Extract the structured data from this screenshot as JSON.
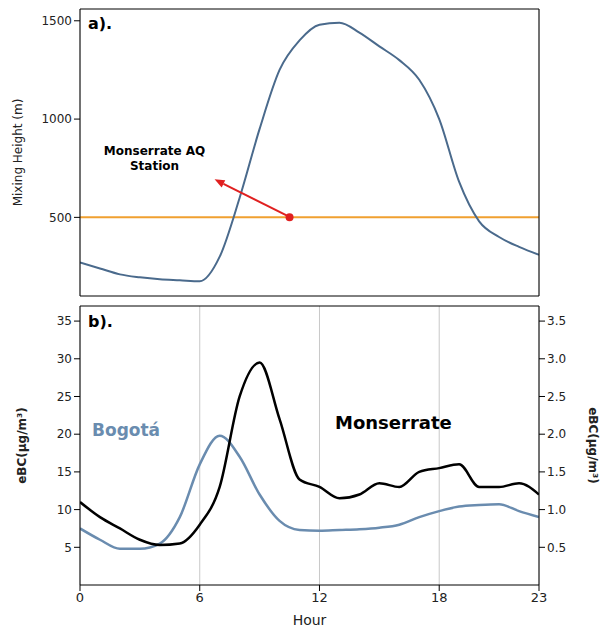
{
  "chart_data": [
    {
      "type": "line",
      "title": "a).",
      "y_label": "Mixing Height (m)",
      "x": [
        0,
        1,
        2,
        3,
        4,
        5,
        6,
        7,
        8,
        9,
        10,
        11,
        12,
        13,
        14,
        15,
        16,
        17,
        18,
        19,
        20,
        21,
        22,
        23
      ],
      "values": [
        270,
        240,
        210,
        195,
        185,
        180,
        175,
        300,
        600,
        950,
        1250,
        1400,
        1480,
        1490,
        1440,
        1370,
        1300,
        1200,
        1000,
        680,
        480,
        400,
        350,
        310
      ],
      "color": "#4a6a8c",
      "xlim": [
        0,
        23
      ],
      "xticks": [
        0,
        6,
        12,
        18,
        23
      ],
      "ylim": [
        100,
        1560
      ],
      "yticks": [
        500,
        1000,
        1500
      ],
      "tick_labels": "y",
      "grid": true,
      "hline": {
        "value": 500,
        "color": "#f0a030"
      },
      "annotation": {
        "text": "Monserrate AQ Station",
        "x": 10.5,
        "y": 500,
        "color": "#e02020"
      }
    },
    {
      "type": "line",
      "title": "b).",
      "x_label": "Hour",
      "y_label": "eBC(μg/m³)",
      "y2_label": "eBC(μg/m³)",
      "x": [
        0,
        1,
        2,
        3,
        4,
        5,
        6,
        7,
        8,
        9,
        10,
        11,
        12,
        13,
        14,
        15,
        16,
        17,
        18,
        19,
        20,
        21,
        22,
        23
      ],
      "xlim": [
        0,
        23
      ],
      "xticks": [
        0,
        6,
        12,
        18,
        23
      ],
      "ylim": [
        0,
        37
      ],
      "yticks": [
        5,
        10,
        15,
        20,
        25,
        30,
        35
      ],
      "y2lim": [
        0,
        3.7
      ],
      "y2ticks": [
        0.5,
        {
          "value": 1,
          "label": "1.0"
        },
        1.5,
        {
          "value": 2,
          "label": "2.0"
        },
        2.5,
        {
          "value": 3,
          "label": "3.0"
        },
        3.5
      ],
      "grid": true,
      "series": [
        {
          "name": "Bogotá",
          "color": "#6a8caf",
          "axis": "y",
          "values": [
            7.5,
            6,
            4.8,
            4.8,
            5.5,
            9,
            16,
            19.8,
            17,
            12,
            8.5,
            7.3,
            7.2,
            7.3,
            7.4,
            7.6,
            8,
            9,
            9.8,
            10.4,
            10.6,
            10.7,
            9.8,
            9
          ]
        },
        {
          "name": "Monserrate",
          "color": "#000000",
          "axis": "y2",
          "values": [
            1.1,
            0.9,
            0.75,
            0.6,
            0.53,
            0.55,
            0.8,
            1.3,
            2.5,
            2.95,
            2.2,
            1.4,
            1.3,
            1.15,
            1.2,
            1.35,
            1.3,
            1.5,
            1.55,
            1.6,
            1.3,
            1.3,
            1.35,
            1.2
          ]
        }
      ]
    }
  ]
}
